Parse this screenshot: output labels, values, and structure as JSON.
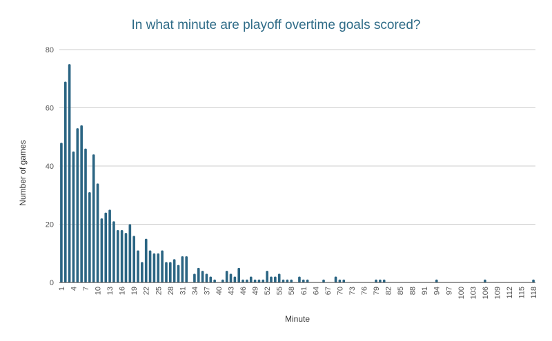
{
  "chart_data": {
    "type": "bar",
    "title": "In what minute are playoff overtime goals scored?",
    "xlabel": "Minute",
    "ylabel": "Number of games",
    "ylim": [
      0,
      80
    ],
    "y_ticks": [
      0,
      20,
      40,
      60,
      80
    ],
    "x_min": 1,
    "x_max": 118,
    "x_ticks": [
      1,
      4,
      7,
      10,
      13,
      16,
      19,
      22,
      25,
      28,
      31,
      34,
      37,
      40,
      43,
      46,
      49,
      52,
      55,
      58,
      61,
      64,
      67,
      70,
      73,
      76,
      79,
      82,
      85,
      88,
      91,
      94,
      97,
      100,
      103,
      106,
      109,
      112,
      115,
      118
    ],
    "grid": true,
    "color": "#2b6583",
    "x": [
      1,
      2,
      3,
      4,
      5,
      6,
      7,
      8,
      9,
      10,
      11,
      12,
      13,
      14,
      15,
      16,
      17,
      18,
      19,
      20,
      21,
      22,
      23,
      24,
      25,
      26,
      27,
      28,
      29,
      30,
      31,
      32,
      33,
      34,
      35,
      36,
      37,
      38,
      39,
      40,
      41,
      42,
      43,
      44,
      45,
      46,
      47,
      48,
      49,
      50,
      51,
      52,
      53,
      54,
      55,
      56,
      57,
      58,
      59,
      60,
      61,
      62,
      63,
      64,
      65,
      66,
      67,
      68,
      69,
      70,
      71,
      72,
      73,
      74,
      75,
      76,
      77,
      78,
      79,
      80,
      81,
      82,
      83,
      84,
      85,
      86,
      87,
      88,
      89,
      90,
      91,
      92,
      93,
      94,
      95,
      96,
      97,
      98,
      99,
      100,
      101,
      102,
      103,
      104,
      105,
      106,
      107,
      108,
      109,
      110,
      111,
      112,
      113,
      114,
      115,
      116,
      117,
      118
    ],
    "values": [
      48,
      69,
      75,
      45,
      53,
      54,
      46,
      31,
      44,
      34,
      22,
      24,
      25,
      21,
      18,
      18,
      17,
      20,
      16,
      11,
      7,
      15,
      11,
      10,
      10,
      11,
      7,
      7,
      8,
      6,
      9,
      9,
      0,
      3,
      5,
      4,
      3,
      2,
      1,
      0,
      1,
      4,
      3,
      2,
      5,
      1,
      1,
      2,
      1,
      1,
      1,
      4,
      2,
      2,
      3,
      1,
      1,
      1,
      0,
      2,
      1,
      1,
      0,
      0,
      0,
      1,
      0,
      0,
      2,
      1,
      1,
      0,
      0,
      0,
      0,
      0,
      0,
      0,
      1,
      1,
      1,
      0,
      0,
      0,
      0,
      0,
      0,
      0,
      0,
      0,
      0,
      0,
      0,
      1,
      0,
      0,
      0,
      0,
      0,
      0,
      0,
      0,
      0,
      0,
      0,
      1,
      0,
      0,
      0,
      0,
      0,
      0,
      0,
      0,
      0,
      0,
      0,
      1
    ]
  }
}
